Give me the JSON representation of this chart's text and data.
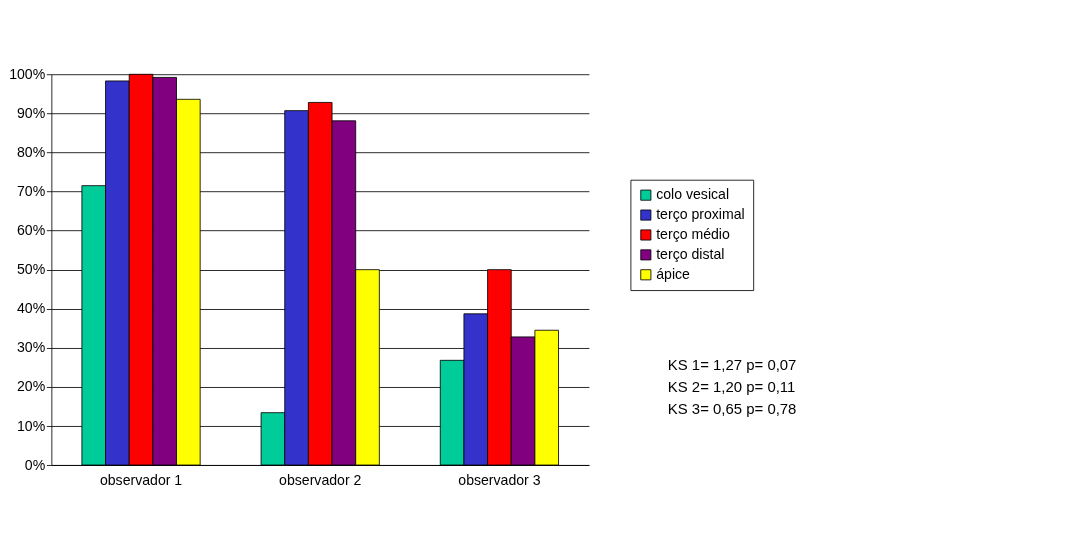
{
  "chart_data": {
    "type": "bar",
    "categories": [
      "observador 1",
      "observador 2",
      "observador 3"
    ],
    "series": [
      {
        "name": "colo vesical",
        "color": "#00cc99",
        "values": [
          71.5,
          13.4,
          26.8
        ]
      },
      {
        "name": "terço proximal",
        "color": "#3333cc",
        "values": [
          98.3,
          90.7,
          38.7
        ]
      },
      {
        "name": "terço médio",
        "color": "#ff0000",
        "values": [
          100,
          92.8,
          50
        ]
      },
      {
        "name": "terço distal",
        "color": "#800080",
        "values": [
          99.2,
          88.1,
          32.8
        ]
      },
      {
        "name": "ápice",
        "color": "#ffff00",
        "values": [
          93.6,
          50,
          34.5
        ]
      }
    ],
    "ylim": [
      0,
      100
    ],
    "yticks": [
      {
        "value": 0,
        "label": "0%"
      },
      {
        "value": 10,
        "label": "10%"
      },
      {
        "value": 20,
        "label": "20%"
      },
      {
        "value": 30,
        "label": "30%"
      },
      {
        "value": 40,
        "label": "40%"
      },
      {
        "value": 50,
        "label": "50%"
      },
      {
        "value": 60,
        "label": "60%"
      },
      {
        "value": 70,
        "label": "70%"
      },
      {
        "value": 80,
        "label": "80%"
      },
      {
        "value": 90,
        "label": "90%"
      },
      {
        "value": 100,
        "label": "100%"
      }
    ],
    "grid": "y",
    "legend": "right",
    "annotations": [
      "KS 1= 1,27 p= 0,07",
      "KS 2= 1,20 p= 0,11",
      "KS 3= 0,65 p= 0,78"
    ]
  }
}
